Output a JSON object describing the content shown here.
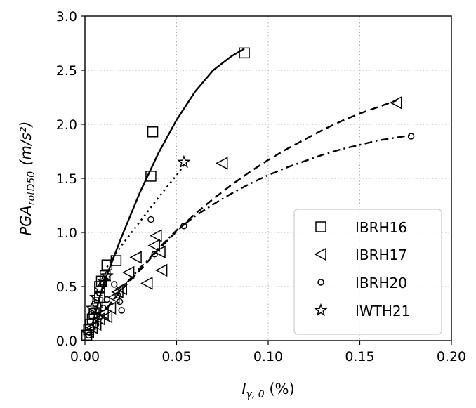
{
  "chart_data": {
    "type": "scatter",
    "title": "",
    "xlabel": {
      "main": "I",
      "sub": "γ, 0",
      "suffix": " (%)"
    },
    "ylabel": {
      "main": "PGA",
      "sub": "rotD50",
      "units": "(m/s²)"
    },
    "xlim": [
      0.0,
      0.2
    ],
    "ylim": [
      0.0,
      3.0
    ],
    "xticks": [
      0.0,
      0.05,
      0.1,
      0.15,
      0.2
    ],
    "xtick_labels": [
      "0.00",
      "0.05",
      "0.10",
      "0.15",
      "0.20"
    ],
    "yticks": [
      0.0,
      0.5,
      1.0,
      1.5,
      2.0,
      2.5,
      3.0
    ],
    "ytick_labels": [
      "0.0",
      "0.5",
      "1.0",
      "1.5",
      "2.0",
      "2.5",
      "3.0"
    ],
    "grid": true,
    "legend_position": "lower-right",
    "series": [
      {
        "name": "IBRH16",
        "marker": "square",
        "line_style": "solid",
        "points": [
          [
            0.001,
            0.05
          ],
          [
            0.002,
            0.1
          ],
          [
            0.003,
            0.15
          ],
          [
            0.004,
            0.2
          ],
          [
            0.005,
            0.25
          ],
          [
            0.006,
            0.3
          ],
          [
            0.007,
            0.35
          ],
          [
            0.008,
            0.4
          ],
          [
            0.008,
            0.5
          ],
          [
            0.009,
            0.55
          ],
          [
            0.011,
            0.6
          ],
          [
            0.012,
            0.7
          ],
          [
            0.017,
            0.74
          ],
          [
            0.036,
            1.52
          ],
          [
            0.037,
            1.93
          ],
          [
            0.087,
            2.66
          ]
        ],
        "fit": [
          [
            0.004,
            0.15
          ],
          [
            0.01,
            0.52
          ],
          [
            0.02,
            0.96
          ],
          [
            0.03,
            1.37
          ],
          [
            0.04,
            1.73
          ],
          [
            0.05,
            2.04
          ],
          [
            0.06,
            2.3
          ],
          [
            0.07,
            2.5
          ],
          [
            0.08,
            2.63
          ],
          [
            0.087,
            2.7
          ]
        ]
      },
      {
        "name": "IBRH17",
        "marker": "triangle-left",
        "line_style": "dashed",
        "points": [
          [
            0.002,
            0.08
          ],
          [
            0.004,
            0.12
          ],
          [
            0.006,
            0.15
          ],
          [
            0.008,
            0.2
          ],
          [
            0.01,
            0.25
          ],
          [
            0.012,
            0.22
          ],
          [
            0.014,
            0.3
          ],
          [
            0.016,
            0.4
          ],
          [
            0.018,
            0.45
          ],
          [
            0.02,
            0.48
          ],
          [
            0.024,
            0.63
          ],
          [
            0.028,
            0.77
          ],
          [
            0.034,
            0.53
          ],
          [
            0.038,
            0.88
          ],
          [
            0.039,
            0.97
          ],
          [
            0.041,
            0.82
          ],
          [
            0.042,
            0.65
          ],
          [
            0.075,
            1.64
          ],
          [
            0.17,
            2.2
          ]
        ],
        "fit": [
          [
            0.012,
            0.3
          ],
          [
            0.02,
            0.47
          ],
          [
            0.03,
            0.65
          ],
          [
            0.04,
            0.84
          ],
          [
            0.05,
            1.01
          ],
          [
            0.06,
            1.17
          ],
          [
            0.07,
            1.31
          ],
          [
            0.08,
            1.44
          ],
          [
            0.09,
            1.56
          ],
          [
            0.1,
            1.67
          ],
          [
            0.11,
            1.77
          ],
          [
            0.12,
            1.86
          ],
          [
            0.13,
            1.95
          ],
          [
            0.14,
            2.03
          ],
          [
            0.15,
            2.1
          ],
          [
            0.16,
            2.16
          ],
          [
            0.17,
            2.22
          ]
        ]
      },
      {
        "name": "IBRH20",
        "marker": "circle",
        "line_style": "dashdot",
        "points": [
          [
            0.002,
            0.05
          ],
          [
            0.004,
            0.1
          ],
          [
            0.006,
            0.15
          ],
          [
            0.008,
            0.22
          ],
          [
            0.01,
            0.3
          ],
          [
            0.012,
            0.38
          ],
          [
            0.016,
            0.52
          ],
          [
            0.018,
            0.42
          ],
          [
            0.019,
            0.36
          ],
          [
            0.02,
            0.28
          ],
          [
            0.036,
            1.12
          ],
          [
            0.038,
            0.8
          ],
          [
            0.054,
            1.06
          ],
          [
            0.178,
            1.89
          ]
        ],
        "fit": [
          [
            0.012,
            0.3
          ],
          [
            0.02,
            0.48
          ],
          [
            0.03,
            0.67
          ],
          [
            0.04,
            0.85
          ],
          [
            0.05,
            1.02
          ],
          [
            0.06,
            1.15
          ],
          [
            0.07,
            1.26
          ],
          [
            0.08,
            1.36
          ],
          [
            0.09,
            1.45
          ],
          [
            0.1,
            1.53
          ],
          [
            0.11,
            1.6
          ],
          [
            0.12,
            1.66
          ],
          [
            0.13,
            1.72
          ],
          [
            0.14,
            1.77
          ],
          [
            0.15,
            1.81
          ],
          [
            0.16,
            1.85
          ],
          [
            0.178,
            1.9
          ]
        ]
      },
      {
        "name": "IWTH21",
        "marker": "star",
        "line_style": "dotted",
        "points": [
          [
            0.004,
            0.3
          ],
          [
            0.006,
            0.4
          ],
          [
            0.008,
            0.48
          ],
          [
            0.01,
            0.55
          ],
          [
            0.012,
            0.6
          ],
          [
            0.054,
            1.65
          ]
        ],
        "fit": [
          [
            0.012,
            0.68
          ],
          [
            0.02,
            0.88
          ],
          [
            0.03,
            1.1
          ],
          [
            0.04,
            1.32
          ],
          [
            0.05,
            1.53
          ],
          [
            0.054,
            1.62
          ]
        ]
      }
    ]
  }
}
